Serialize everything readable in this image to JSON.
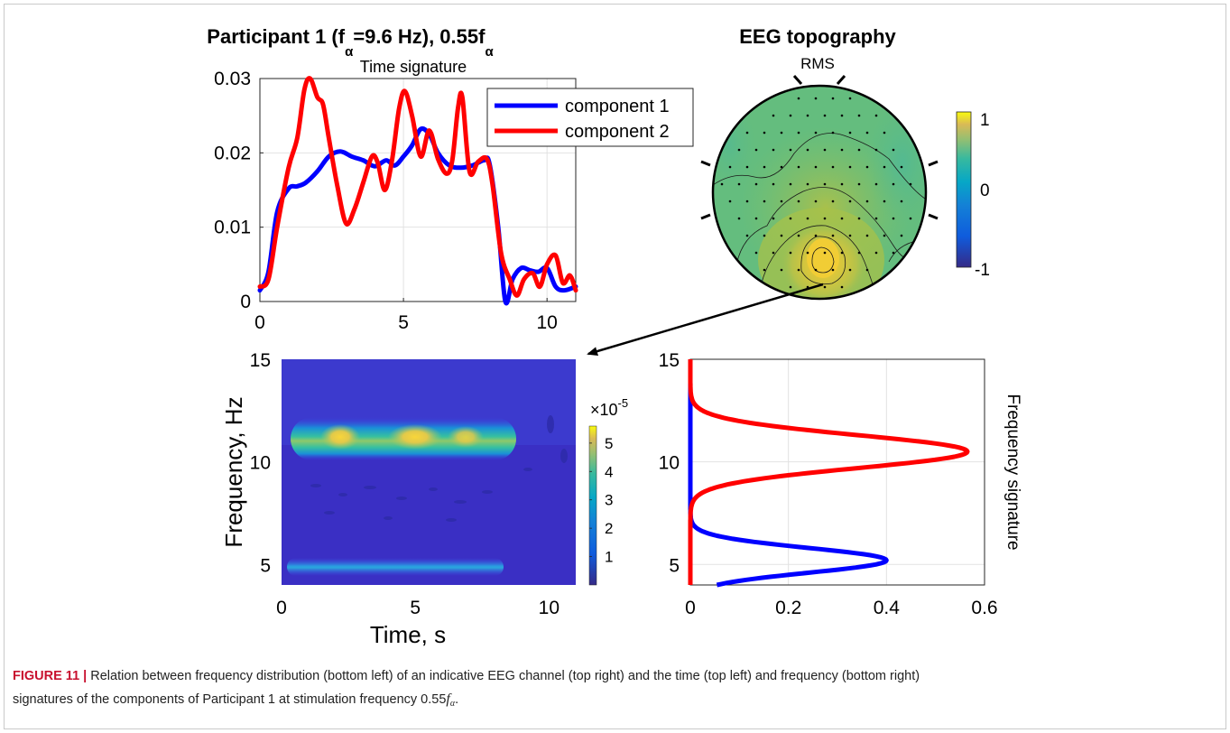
{
  "chart_data": [
    {
      "id": "time-signature",
      "type": "line",
      "title": "Participant 1 (f_α=9.6 Hz), 0.55f_α",
      "title_parts": {
        "pre": "Participant 1 (f",
        "sub1": "α",
        "mid": "=9.6 Hz), 0.55f",
        "sub2": "α"
      },
      "subtitle": "Time signature",
      "xlabel": "",
      "ylabel": "",
      "xlim": [
        0,
        11
      ],
      "ylim": [
        0,
        0.03
      ],
      "xticks": [
        0,
        5,
        10
      ],
      "xtick_labels": [
        "0",
        "5",
        "10"
      ],
      "yticks": [
        0,
        0.01,
        0.02,
        0.03
      ],
      "ytick_labels": [
        "0",
        "0.01",
        "0.02",
        "0.03"
      ],
      "grid": true,
      "legend_position": "top-right",
      "series": [
        {
          "name": "component 1",
          "color": "#0000ff",
          "x": [
            0,
            0.3,
            0.6,
            1.0,
            1.3,
            1.6,
            2.0,
            2.4,
            2.8,
            3.2,
            3.6,
            4.0,
            4.4,
            4.7,
            5.0,
            5.3,
            5.6,
            5.9,
            6.2,
            6.6,
            7.0,
            7.4,
            7.8,
            8.0,
            8.3,
            8.55,
            8.8,
            9.1,
            9.4,
            9.7,
            10.0,
            10.3,
            10.6,
            11.0
          ],
          "y": [
            0.0015,
            0.004,
            0.012,
            0.0152,
            0.0155,
            0.016,
            0.0175,
            0.0195,
            0.0202,
            0.0195,
            0.019,
            0.0182,
            0.019,
            0.0183,
            0.0195,
            0.021,
            0.0232,
            0.0225,
            0.02,
            0.0183,
            0.018,
            0.0183,
            0.019,
            0.0185,
            0.01,
            0.0,
            0.003,
            0.0045,
            0.0042,
            0.004,
            0.0045,
            0.002,
            0.0015,
            0.002
          ]
        },
        {
          "name": "component 2",
          "color": "#ff0000",
          "x": [
            0,
            0.3,
            0.6,
            1.0,
            1.3,
            1.55,
            1.75,
            2.0,
            2.2,
            2.4,
            2.7,
            3.0,
            3.3,
            3.6,
            3.9,
            4.1,
            4.35,
            4.6,
            4.85,
            5.05,
            5.3,
            5.6,
            5.9,
            6.2,
            6.5,
            6.7,
            6.9,
            7.05,
            7.3,
            7.6,
            7.9,
            8.1,
            8.4,
            8.7,
            8.95,
            9.2,
            9.5,
            9.75,
            10.0,
            10.3,
            10.55,
            10.8,
            11.0
          ],
          "y": [
            0.002,
            0.003,
            0.01,
            0.018,
            0.022,
            0.0285,
            0.03,
            0.0275,
            0.0265,
            0.022,
            0.0155,
            0.0105,
            0.0125,
            0.016,
            0.0195,
            0.0187,
            0.015,
            0.019,
            0.026,
            0.0283,
            0.025,
            0.0195,
            0.023,
            0.0192,
            0.0172,
            0.019,
            0.026,
            0.0275,
            0.0175,
            0.0188,
            0.0192,
            0.0158,
            0.0065,
            0.003,
            0.0008,
            0.003,
            0.0038,
            0.002,
            0.005,
            0.0062,
            0.0025,
            0.0035,
            0.0015
          ]
        }
      ]
    },
    {
      "id": "eeg-topography",
      "type": "heatmap",
      "title": "EEG topography",
      "subtitle": "RMS",
      "colorbar": {
        "ticks": [
          "1",
          "0",
          "-1"
        ],
        "range": [
          -1,
          1
        ]
      },
      "contour_values": [
        0.2,
        0.35,
        0.5,
        0.65
      ]
    },
    {
      "id": "time-frequency",
      "type": "heatmap",
      "title": "",
      "xlabel": "Time, s",
      "ylabel": "Frequency, Hz",
      "xlim": [
        0,
        11
      ],
      "ylim": [
        4,
        15
      ],
      "xticks": [
        "0",
        "5",
        "10"
      ],
      "yticks": [
        "5",
        "10",
        "15"
      ],
      "colorbar": {
        "multiplier": "×10",
        "exponent": "-5",
        "ticks": [
          "5",
          "4",
          "3",
          "2",
          "1"
        ],
        "range": [
          0,
          5.6
        ]
      },
      "bands": [
        {
          "frequency_hz": 10.5,
          "time_range_s": [
            0.5,
            8.4
          ],
          "peaks": [
            {
              "time_s": 2.0,
              "value": 5.5
            },
            {
              "time_s": 5.1,
              "value": 5.6
            },
            {
              "time_s": 6.9,
              "value": 5.0
            }
          ]
        },
        {
          "frequency_hz": 5.0,
          "time_range_s": [
            0.3,
            8.2
          ],
          "peak_value": 2.3
        }
      ]
    },
    {
      "id": "frequency-signature",
      "type": "line",
      "title": "",
      "ylabel": "Frequency signature",
      "xlim": [
        0,
        0.6
      ],
      "ylim": [
        4,
        15
      ],
      "xticks": [
        0,
        0.2,
        0.4,
        0.6
      ],
      "xtick_labels": [
        "0",
        "0.2",
        "0.4",
        "0.6"
      ],
      "yticks": [
        5,
        10,
        15
      ],
      "ytick_labels": [
        "5",
        "10",
        "15"
      ],
      "grid": true,
      "series": [
        {
          "name": "",
          "color": "#0000ff",
          "peak_frequency_hz": 5.2,
          "peak_value": 0.4,
          "width_hz": 0.6
        },
        {
          "name": "",
          "color": "#ff0000",
          "peak_frequency_hz": 10.5,
          "peak_value": 0.565,
          "width_hz": 0.8
        }
      ]
    }
  ],
  "caption": {
    "label": "FIGURE 11 |",
    "text1": " Relation between frequency distribution (bottom left) of an indicative EEG channel (top right) and the time (top left) and frequency (bottom right)",
    "text2": "signatures of the components of Participant 1 at stimulation frequency 0.55",
    "symbol": "f",
    "symbol_sub": "α",
    "end": "."
  }
}
